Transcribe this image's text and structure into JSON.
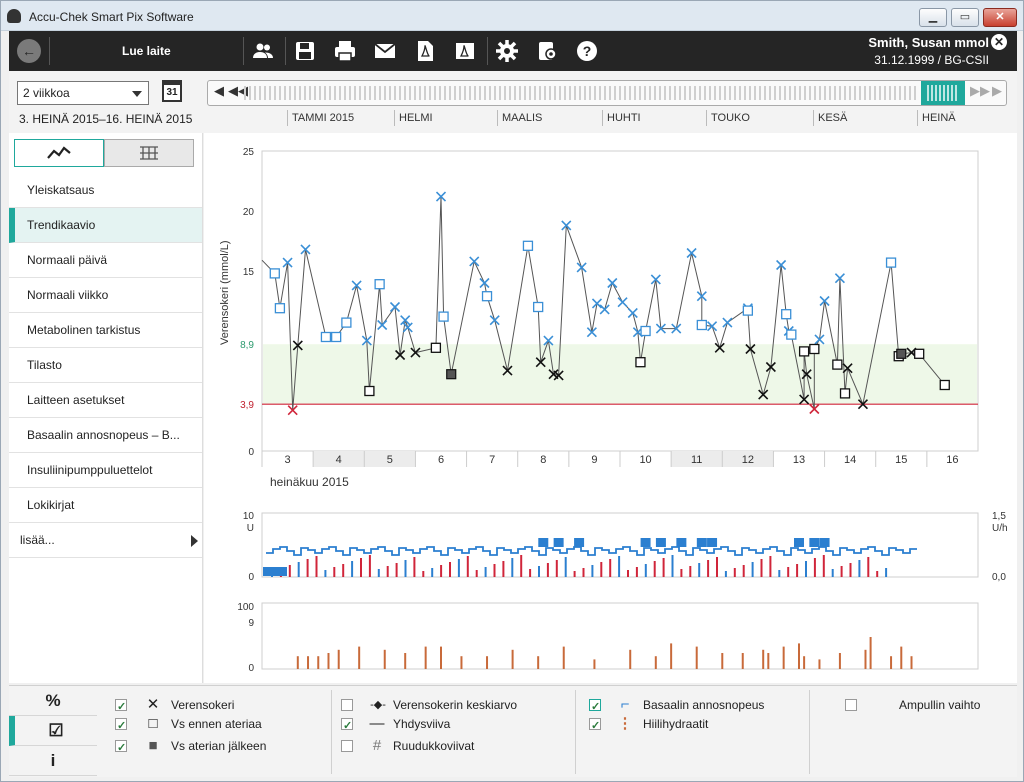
{
  "window": {
    "title": "Accu-Chek Smart Pix Software"
  },
  "toolbar": {
    "read_device_label": "Lue laite",
    "patient_name": "Smith, Susan mmol",
    "patient_details": "31.12.1999 / BG-CSII",
    "icons": [
      "back-icon",
      "people-icon",
      "save-icon",
      "print-icon",
      "email-icon",
      "pdf-icon",
      "pdf-export-icon",
      "settings-icon",
      "device-settings-icon",
      "help-icon",
      "close-icon"
    ]
  },
  "period": {
    "selected": "2 viikkoa",
    "calendar_day": "31",
    "range": "3. HEINÄ 2015–16. HEINÄ 2015",
    "months": [
      "TAMMI 2015",
      "HELMI",
      "MAALIS",
      "HUHTI",
      "TOUKO",
      "KESÄ",
      "HEINÄ"
    ]
  },
  "sidebar": {
    "items": [
      "Yleiskatsaus",
      "Trendikaavio",
      "Normaali päivä",
      "Normaali viikko",
      "Metabolinen tarkistus",
      "Tilasto",
      "Laitteen asetukset",
      "Basaalin annosnopeus – B...",
      "Insuliinipumppuluettelot",
      "Lokikirjat"
    ],
    "active_index": 1,
    "more_label": "lisää..."
  },
  "chart_data": [
    {
      "type": "scatter",
      "title": "",
      "ylabel": "Verensokeri (mmol/L)",
      "xlabel": "heinäkuu 2015",
      "ylim": [
        0,
        25
      ],
      "yticks": [
        "25",
        "20",
        "15",
        "8,9",
        "3,9",
        "0"
      ],
      "target_range": [
        3.9,
        8.9
      ],
      "hypo_line": 3.9,
      "x_days": [
        "3",
        "4",
        "5",
        "6",
        "7",
        "8",
        "9",
        "10",
        "11",
        "12",
        "13",
        "14",
        "15",
        "16"
      ],
      "series": [
        {
          "name": "Verensokeri",
          "marker": "x",
          "points": [
            [
              3.0,
              15.7
            ],
            [
              3.1,
              3.4
            ],
            [
              3.2,
              8.8
            ],
            [
              3.35,
              16.8
            ],
            [
              4.35,
              13.8
            ],
            [
              4.55,
              9.2
            ],
            [
              4.85,
              10.5
            ],
            [
              5.1,
              12.0
            ],
            [
              5.2,
              8.0
            ],
            [
              5.3,
              10.9
            ],
            [
              5.35,
              10.3
            ],
            [
              5.5,
              8.2
            ],
            [
              6.0,
              21.2
            ],
            [
              6.65,
              15.8
            ],
            [
              6.85,
              14.0
            ],
            [
              7.05,
              10.9
            ],
            [
              7.3,
              6.7
            ],
            [
              7.95,
              7.4
            ],
            [
              8.1,
              9.2
            ],
            [
              8.2,
              6.4
            ],
            [
              8.3,
              6.3
            ],
            [
              8.45,
              18.8
            ],
            [
              8.75,
              15.3
            ],
            [
              8.95,
              9.9
            ],
            [
              9.05,
              12.3
            ],
            [
              9.2,
              11.8
            ],
            [
              9.35,
              14.0
            ],
            [
              9.55,
              12.4
            ],
            [
              9.75,
              11.5
            ],
            [
              9.85,
              9.9
            ],
            [
              10.2,
              14.3
            ],
            [
              10.3,
              10.2
            ],
            [
              10.6,
              10.2
            ],
            [
              10.9,
              16.5
            ],
            [
              11.1,
              12.9
            ],
            [
              11.3,
              10.4
            ],
            [
              11.45,
              8.6
            ],
            [
              11.6,
              10.7
            ],
            [
              12.0,
              11.9
            ],
            [
              12.05,
              8.5
            ],
            [
              12.3,
              4.7
            ],
            [
              12.45,
              7.0
            ],
            [
              12.65,
              15.5
            ],
            [
              12.8,
              10.0
            ],
            [
              13.1,
              4.3
            ],
            [
              13.15,
              6.4
            ],
            [
              13.3,
              3.5
            ],
            [
              13.4,
              9.3
            ],
            [
              13.5,
              12.5
            ],
            [
              13.8,
              14.4
            ],
            [
              13.95,
              6.9
            ],
            [
              14.25,
              3.9
            ],
            [
              15.0,
              8.1
            ],
            [
              15.2,
              8.2
            ]
          ]
        },
        {
          "name": "Vs ennen ateriaa",
          "marker": "square",
          "points": [
            [
              2.75,
              14.8
            ],
            [
              2.85,
              11.9
            ],
            [
              3.75,
              9.5
            ],
            [
              3.95,
              9.5
            ],
            [
              4.15,
              10.7
            ],
            [
              4.6,
              5.0
            ],
            [
              4.8,
              13.9
            ],
            [
              5.9,
              8.6
            ],
            [
              6.05,
              11.2
            ],
            [
              6.9,
              12.9
            ],
            [
              7.7,
              17.1
            ],
            [
              7.9,
              12.0
            ],
            [
              9.9,
              7.4
            ],
            [
              10.0,
              10.0
            ],
            [
              11.1,
              10.5
            ],
            [
              12.0,
              11.7
            ],
            [
              12.75,
              11.4
            ],
            [
              12.85,
              9.7
            ],
            [
              13.1,
              8.3
            ],
            [
              13.3,
              8.5
            ],
            [
              13.75,
              7.2
            ],
            [
              13.9,
              4.8
            ],
            [
              14.8,
              15.7
            ],
            [
              14.95,
              7.9
            ],
            [
              15.35,
              8.1
            ],
            [
              15.85,
              5.5
            ]
          ]
        },
        {
          "name": "Vs aterian jälkeen",
          "marker": "filled-square",
          "points": [
            [
              6.2,
              6.4
            ],
            [
              15.0,
              8.1
            ]
          ]
        }
      ]
    },
    {
      "type": "area",
      "title": "Basaalin annosnopeus",
      "ylabel_left": "U",
      "ylabel_right": "U/h",
      "yticks_left": [
        "10",
        "0"
      ],
      "yticks_right": [
        "1,5",
        "0,0"
      ]
    },
    {
      "type": "bar",
      "title": "Hiilihydraatit",
      "yticks": [
        "100",
        "9",
        "0"
      ],
      "values": [
        [
          3.2,
          20
        ],
        [
          3.4,
          20
        ],
        [
          3.6,
          20
        ],
        [
          3.8,
          25
        ],
        [
          4.0,
          30
        ],
        [
          4.4,
          35
        ],
        [
          4.9,
          30
        ],
        [
          5.3,
          25
        ],
        [
          5.7,
          35
        ],
        [
          6.0,
          35
        ],
        [
          6.4,
          20
        ],
        [
          6.9,
          20
        ],
        [
          7.4,
          30
        ],
        [
          7.9,
          20
        ],
        [
          8.4,
          35
        ],
        [
          9.0,
          15
        ],
        [
          9.7,
          30
        ],
        [
          10.2,
          20
        ],
        [
          10.5,
          40
        ],
        [
          11.0,
          35
        ],
        [
          11.5,
          25
        ],
        [
          11.9,
          25
        ],
        [
          12.3,
          30
        ],
        [
          12.4,
          25
        ],
        [
          12.7,
          35
        ],
        [
          13.0,
          40
        ],
        [
          13.1,
          20
        ],
        [
          13.4,
          15
        ],
        [
          13.8,
          25
        ],
        [
          14.3,
          30
        ],
        [
          14.4,
          50
        ],
        [
          14.8,
          20
        ],
        [
          15.0,
          35
        ],
        [
          15.2,
          20
        ]
      ]
    }
  ],
  "legend": {
    "side_tabs": [
      "%",
      "☑",
      "i"
    ],
    "col1": [
      {
        "label": "Verensokeri",
        "checked": true,
        "symbol": "✕"
      },
      {
        "label": "Vs ennen ateriaa",
        "checked": true,
        "symbol": "□"
      },
      {
        "label": "Vs aterian jälkeen",
        "checked": true,
        "symbol": "■"
      }
    ],
    "col2": [
      {
        "label": "Verensokerin keskiarvo",
        "checked": false,
        "symbol": "-◆-"
      },
      {
        "label": "Yhdysviiva",
        "checked": true,
        "symbol": "—"
      },
      {
        "label": "Ruudukkoviivat",
        "checked": false,
        "symbol": "#"
      }
    ],
    "col3": [
      {
        "label": "Basaalin annosnopeus",
        "checked": true,
        "symbol": "⌐"
      },
      {
        "label": "Hiilihydraatit",
        "checked": true,
        "symbol": "⋮"
      }
    ],
    "col4": [
      {
        "label": "Ampullin vaihto",
        "checked": false
      }
    ]
  },
  "colors": {
    "accent": "#1fa89c",
    "bg_marker_blue": "#3a8fd6",
    "hypo_red": "#d0253a",
    "target_green": "#ecf8e6",
    "carb_orange": "#c86a3a"
  }
}
